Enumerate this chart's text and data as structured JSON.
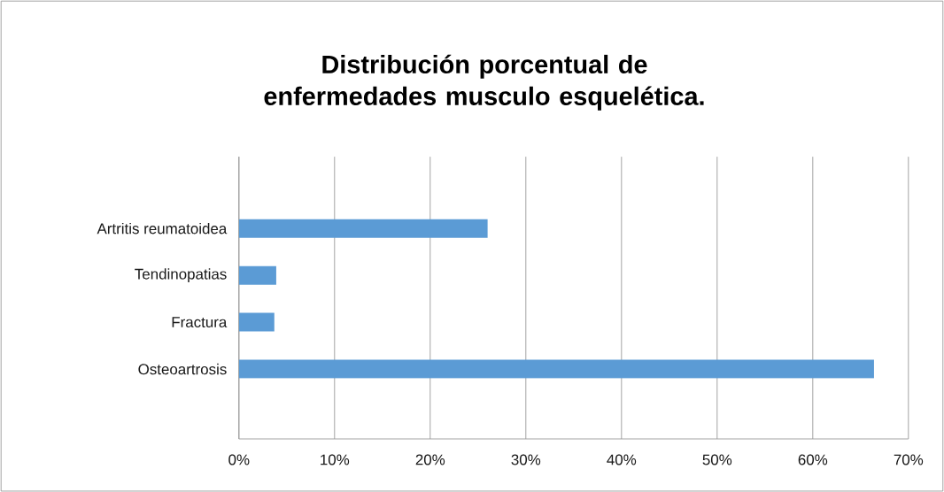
{
  "chart_data": {
    "type": "bar",
    "orientation": "horizontal",
    "title": "Distribución porcentual de enfermedades musculo esquelética.",
    "categories": [
      "Artritis reumatoidea",
      "Tendinopatias",
      "Fractura",
      "Osteoartrosis"
    ],
    "values": [
      26.0,
      3.9,
      3.7,
      66.4
    ],
    "color": "#5b9bd5",
    "xlim": [
      0,
      70
    ],
    "xticks": [
      {
        "value": 0,
        "label": "0%"
      },
      {
        "value": 10,
        "label": "10%"
      },
      {
        "value": 20,
        "label": "20%"
      },
      {
        "value": 30,
        "label": "30%"
      },
      {
        "value": 40,
        "label": "40%"
      },
      {
        "value": 50,
        "label": "50%"
      },
      {
        "value": 60,
        "label": "60%"
      },
      {
        "value": 70,
        "label": "70%"
      }
    ],
    "grid": "x"
  }
}
